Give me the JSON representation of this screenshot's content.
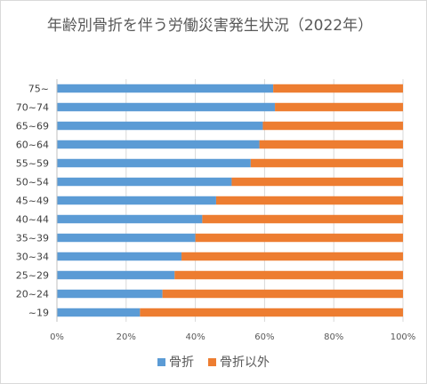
{
  "chart_data": {
    "type": "bar",
    "orientation": "horizontal",
    "stacked": "percent",
    "title": "年齢別骨折を伴う労働災害発生状況（2022年）",
    "categories": [
      "75~",
      "70~74",
      "65~69",
      "60~64",
      "55~59",
      "50~54",
      "45~49",
      "40~44",
      "35~39",
      "30~34",
      "25~29",
      "20~24",
      "~19"
    ],
    "series": [
      {
        "name": "骨折",
        "color": "#5B9BD5",
        "values": [
          62.5,
          63,
          59.5,
          58.5,
          56,
          50.5,
          46,
          42,
          40,
          36,
          34,
          30.5,
          24
        ]
      },
      {
        "name": "骨折以外",
        "color": "#ED7D31",
        "values": [
          37.5,
          37,
          40.5,
          41.5,
          44,
          49.5,
          54,
          58,
          60,
          64,
          66,
          69.5,
          76
        ]
      }
    ],
    "xticks": [
      "0%",
      "20%",
      "40%",
      "60%",
      "80%",
      "100%"
    ],
    "xlim": [
      0,
      100
    ],
    "grid": true,
    "legend_position": "bottom"
  }
}
